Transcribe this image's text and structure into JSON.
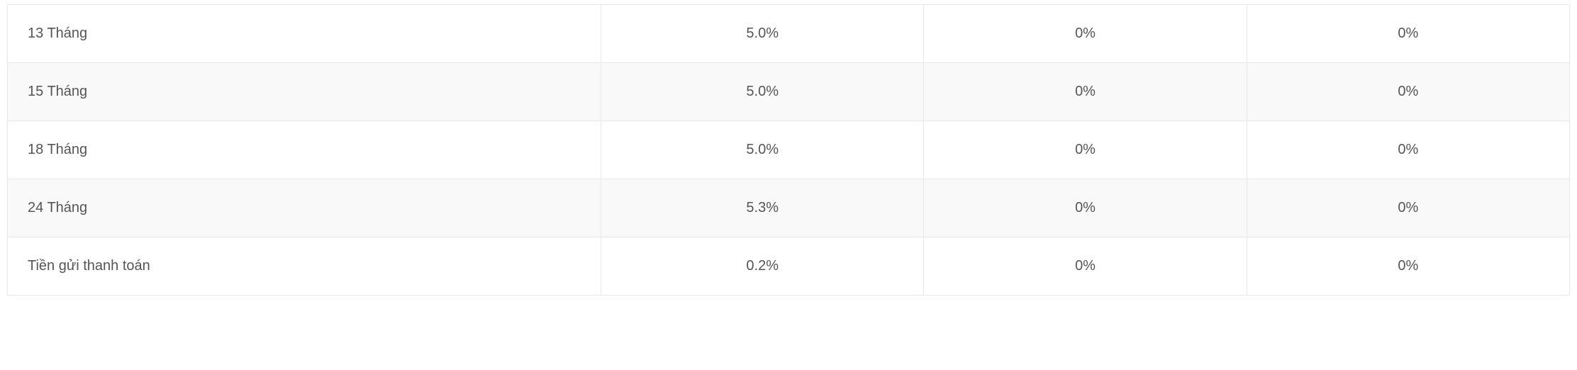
{
  "table": {
    "type": "table",
    "background_color_odd": "#ffffff",
    "background_color_even": "#f9f9f9",
    "border_color": "#e8e8e8",
    "text_color": "#555555",
    "font_size": 20,
    "column_widths": [
      "38%",
      "20.67%",
      "20.67%",
      "20.67%"
    ],
    "column_align": [
      "left",
      "center",
      "center",
      "center"
    ],
    "rows": [
      {
        "label": "13 Tháng",
        "rate1": "5.0%",
        "rate2": "0%",
        "rate3": "0%"
      },
      {
        "label": "15 Tháng",
        "rate1": "5.0%",
        "rate2": "0%",
        "rate3": "0%"
      },
      {
        "label": "18 Tháng",
        "rate1": "5.0%",
        "rate2": "0%",
        "rate3": "0%"
      },
      {
        "label": "24 Tháng",
        "rate1": "5.3%",
        "rate2": "0%",
        "rate3": "0%"
      },
      {
        "label": "Tiền gửi thanh toán",
        "rate1": "0.2%",
        "rate2": "0%",
        "rate3": "0%"
      }
    ]
  }
}
